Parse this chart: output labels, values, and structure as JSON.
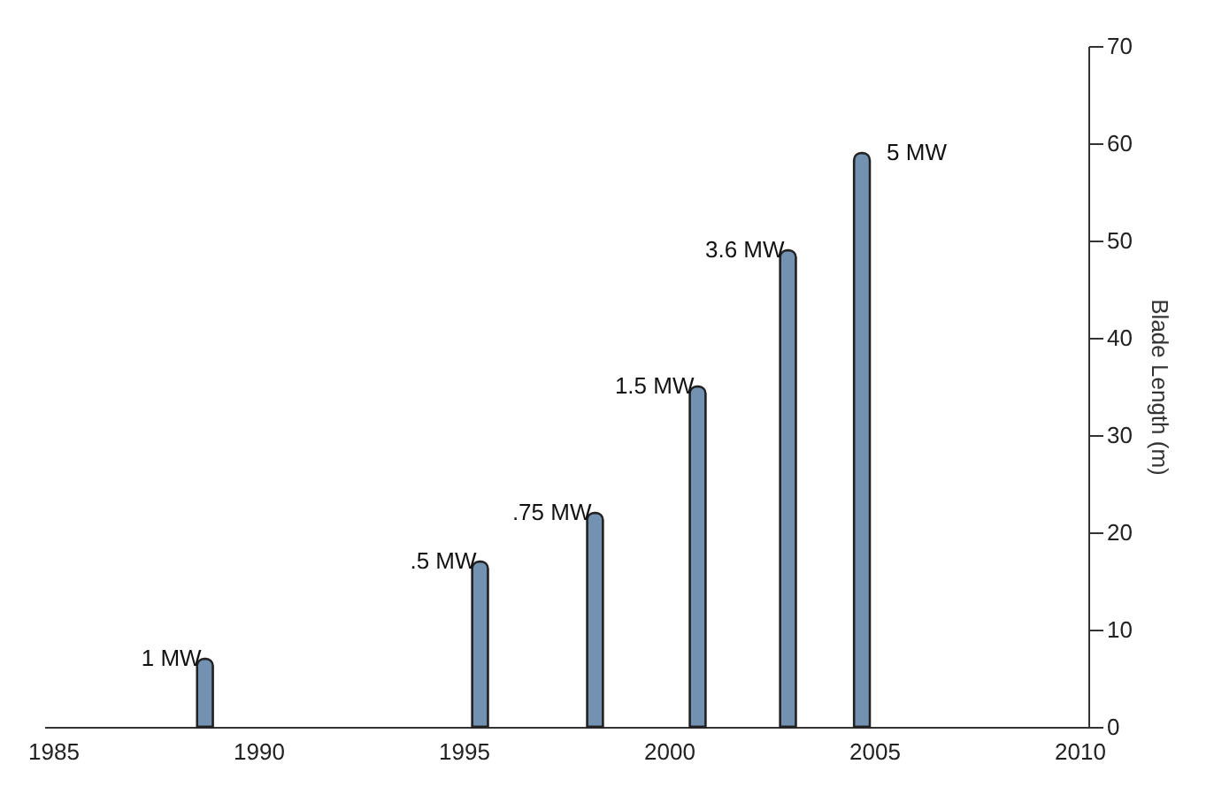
{
  "chart_data": {
    "type": "bar",
    "ylabel": "Blade Length (m)",
    "x": [
      1988.7,
      1995.4,
      1998.2,
      2000.7,
      2002.9,
      2004.7
    ],
    "values": [
      7,
      17,
      22,
      35,
      49,
      59
    ],
    "color": "#7392b2",
    "xlim": [
      1985,
      2010
    ],
    "xticks": [
      1985,
      1990,
      1995,
      2000,
      2005,
      2010
    ],
    "ylim": [
      0,
      70
    ],
    "yticks": [
      0,
      10,
      20,
      30,
      40,
      50,
      60,
      70
    ],
    "grid": false,
    "annotations": [
      {
        "text": "1 MW",
        "x": 1988.7,
        "y": 7
      },
      {
        "text": ".5 MW",
        "x": 1995.4,
        "y": 17
      },
      {
        "text": ".75 MW",
        "x": 1998.2,
        "y": 22
      },
      {
        "text": "1.5 MW",
        "x": 2000.7,
        "y": 35
      },
      {
        "text": "3.6 MW",
        "x": 2002.9,
        "y": 49
      },
      {
        "text": "5 MW",
        "x": 2004.7,
        "y": 59
      }
    ]
  }
}
